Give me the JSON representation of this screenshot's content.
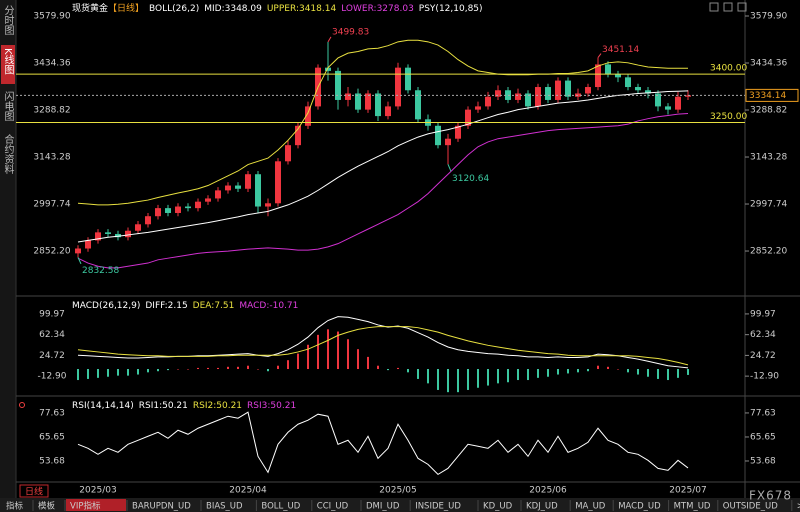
{
  "ui": {
    "sidebar": [
      "分时图",
      "K线图",
      "闪电图",
      "合约资料"
    ],
    "period_label": "日线",
    "brand": "FX678",
    "bottom_tabs": [
      "指标",
      "模板",
      "VIP指标",
      "BARUPDN_UD",
      "BIAS_UD",
      "BOLL_UD",
      "CCI_UD",
      "DMI_UD",
      "INSIDE_UD",
      "KD_UD",
      "KDJ_UD",
      "MA_UD",
      "MACD_UD",
      "MTM_UD",
      "OUTSIDE_UD",
      ">>"
    ]
  },
  "chart_data": [
    {
      "type": "candlestick",
      "title": "现货黄金",
      "period": "【日线】",
      "indicators": [
        {
          "text": "BOLL(26,2)",
          "color": "#ffffff"
        },
        {
          "text": "MID:3348.09",
          "color": "#ffffff"
        },
        {
          "text": "UPPER:3418.14",
          "color": "#e8e040"
        },
        {
          "text": "LOWER:3278.03",
          "color": "#e040e0"
        },
        {
          "text": "PSY(12,10,85)",
          "color": "#ffffff"
        }
      ],
      "categories": [
        null,
        null,
        "2025/03",
        null,
        null,
        null,
        null,
        null,
        null,
        null,
        null,
        null,
        null,
        null,
        null,
        null,
        null,
        "2025/04",
        null,
        null,
        null,
        null,
        null,
        null,
        null,
        null,
        null,
        null,
        null,
        null,
        null,
        null,
        "2025/05",
        null,
        null,
        null,
        null,
        null,
        null,
        null,
        null,
        null,
        null,
        null,
        null,
        null,
        null,
        "2025/06",
        null,
        null,
        null,
        null,
        null,
        null,
        null,
        null,
        null,
        null,
        null,
        null,
        null,
        "2025/07"
      ],
      "open": [
        2845,
        2860,
        2885,
        2910,
        2905,
        2895,
        2915,
        2935,
        2960,
        2985,
        2970,
        2990,
        2985,
        3005,
        3015,
        3040,
        3055,
        3045,
        3090,
        2990,
        3000,
        3130,
        3180,
        3240,
        3300,
        3420,
        3410,
        3320,
        3340,
        3290,
        3340,
        3270,
        3300,
        3420,
        3350,
        3260,
        3240,
        3180,
        3200,
        3240,
        3290,
        3300,
        3330,
        3350,
        3320,
        3340,
        3300,
        3360,
        3320,
        3380,
        3330,
        3340,
        3360,
        3430,
        3400,
        3390,
        3360,
        3350,
        3340,
        3300,
        3290,
        3330
      ],
      "high": [
        2870,
        2895,
        2920,
        2920,
        2915,
        2925,
        2945,
        2970,
        2995,
        2995,
        3000,
        3000,
        3015,
        3025,
        3050,
        3065,
        3065,
        3100,
        3100,
        3015,
        3140,
        3195,
        3250,
        3315,
        3430,
        3499.83,
        3420,
        3360,
        3355,
        3350,
        3350,
        3315,
        3435,
        3430,
        3360,
        3275,
        3250,
        3215,
        3250,
        3300,
        3315,
        3345,
        3365,
        3360,
        3355,
        3350,
        3370,
        3370,
        3390,
        3390,
        3355,
        3370,
        3451.14,
        3440,
        3410,
        3400,
        3370,
        3360,
        3350,
        3310,
        3345,
        3350
      ],
      "low": [
        2832.58,
        2850,
        2875,
        2895,
        2885,
        2885,
        2905,
        2925,
        2950,
        2960,
        2960,
        2975,
        2975,
        2995,
        3005,
        3030,
        3035,
        3035,
        2970,
        2960,
        2990,
        3120,
        3170,
        3230,
        3290,
        3380,
        3290,
        3300,
        3280,
        3280,
        3255,
        3260,
        3290,
        3340,
        3250,
        3225,
        3170,
        3120.64,
        3190,
        3230,
        3280,
        3290,
        3320,
        3310,
        3310,
        3290,
        3290,
        3310,
        3310,
        3320,
        3320,
        3330,
        3350,
        3390,
        3375,
        3350,
        3340,
        3325,
        3285,
        3275,
        3280,
        3320
      ],
      "close": [
        2860,
        2885,
        2910,
        2905,
        2895,
        2915,
        2935,
        2960,
        2985,
        2970,
        2990,
        2985,
        3005,
        3015,
        3040,
        3055,
        3045,
        3090,
        2990,
        3000,
        3130,
        3180,
        3240,
        3300,
        3420,
        3410,
        3320,
        3340,
        3290,
        3340,
        3270,
        3300,
        3420,
        3350,
        3260,
        3240,
        3180,
        3200,
        3240,
        3290,
        3300,
        3330,
        3350,
        3320,
        3340,
        3300,
        3360,
        3320,
        3380,
        3330,
        3340,
        3360,
        3430,
        3400,
        3390,
        3360,
        3350,
        3340,
        3300,
        3290,
        3330,
        3334.14
      ],
      "up_color": "#f0353f",
      "down_color": "#3cc8a0",
      "series": [
        {
          "color": "#e8e040",
          "values": [
            3000,
            2998,
            2995,
            2995,
            2997,
            3000,
            3005,
            3010,
            3018,
            3025,
            3032,
            3038,
            3045,
            3055,
            3070,
            3085,
            3100,
            3120,
            3130,
            3140,
            3165,
            3195,
            3230,
            3280,
            3360,
            3420,
            3450,
            3465,
            3470,
            3478,
            3480,
            3488,
            3500,
            3505,
            3505,
            3500,
            3490,
            3470,
            3445,
            3425,
            3410,
            3405,
            3400,
            3398,
            3398,
            3398,
            3400,
            3400,
            3402,
            3402,
            3405,
            3410,
            3425,
            3435,
            3438,
            3435,
            3428,
            3422,
            3420,
            3418,
            3418,
            3418.14
          ]
        },
        {
          "color": "#ffffff",
          "values": [
            2880,
            2885,
            2890,
            2895,
            2898,
            2902,
            2906,
            2910,
            2915,
            2920,
            2925,
            2930,
            2935,
            2940,
            2946,
            2952,
            2958,
            2965,
            2970,
            2975,
            2985,
            2995,
            3008,
            3022,
            3040,
            3060,
            3080,
            3098,
            3115,
            3130,
            3145,
            3160,
            3178,
            3192,
            3205,
            3215,
            3222,
            3228,
            3236,
            3245,
            3255,
            3265,
            3275,
            3282,
            3290,
            3295,
            3300,
            3305,
            3310,
            3313,
            3316,
            3320,
            3325,
            3330,
            3334,
            3337,
            3340,
            3342,
            3344,
            3346,
            3347,
            3348.09
          ]
        },
        {
          "color": "#d030d0",
          "values": [
            2830,
            2815,
            2805,
            2800,
            2800,
            2805,
            2810,
            2815,
            2825,
            2830,
            2835,
            2840,
            2845,
            2848,
            2850,
            2852,
            2855,
            2858,
            2860,
            2862,
            2860,
            2858,
            2855,
            2855,
            2858,
            2865,
            2875,
            2890,
            2905,
            2920,
            2935,
            2950,
            2965,
            2985,
            3005,
            3030,
            3060,
            3090,
            3120,
            3150,
            3175,
            3190,
            3200,
            3205,
            3210,
            3215,
            3220,
            3225,
            3228,
            3230,
            3232,
            3234,
            3236,
            3238,
            3240,
            3245,
            3255,
            3262,
            3268,
            3272,
            3276,
            3278.03
          ]
        }
      ],
      "hlines": [
        {
          "value": 3400,
          "label": "3400.00"
        },
        {
          "value": 3250,
          "label": "3250.00"
        }
      ],
      "hline_color": "#e8e040",
      "last": 3334.14,
      "ylim": [
        2747,
        3614
      ],
      "yticks": [
        {
          "value": 3579.9,
          "label": "3579.90"
        },
        3434.36,
        3288.82,
        3143.28,
        2997.74,
        {
          "value": 2852.2,
          "label": "2852.20"
        }
      ]
    },
    {
      "type": "macd",
      "title": "MACD(26,12,9)",
      "legend": [
        {
          "text": "DIFF:2.15",
          "color": "#ffffff"
        },
        {
          "text": "DEA:7.51",
          "color": "#e8e040"
        },
        {
          "text": "MACD:-10.71",
          "color": "#e040e0"
        }
      ],
      "series": [
        {
          "color": "#ffffff",
          "values": [
            25,
            24,
            23,
            22,
            21,
            20,
            20,
            21,
            22,
            22,
            23,
            23,
            24,
            24,
            25,
            26,
            27,
            28,
            25,
            23,
            28,
            35,
            45,
            58,
            75,
            88,
            95,
            94,
            90,
            86,
            80,
            76,
            78,
            74,
            66,
            58,
            48,
            40,
            35,
            32,
            30,
            28,
            27,
            25,
            24,
            22,
            22,
            21,
            22,
            21,
            21,
            22,
            27,
            26,
            24,
            21,
            18,
            14,
            10,
            6,
            4,
            2.15
          ]
        },
        {
          "color": "#e8e040",
          "values": [
            35,
            33,
            31,
            29,
            27,
            26,
            25,
            24,
            24,
            23,
            23,
            23,
            23,
            23,
            24,
            24,
            25,
            25,
            25,
            25,
            25,
            27,
            31,
            36,
            44,
            52,
            61,
            67,
            72,
            75,
            77,
            77,
            77,
            77,
            75,
            71,
            67,
            61,
            56,
            51,
            47,
            43,
            40,
            37,
            34,
            32,
            30,
            28,
            27,
            25,
            24,
            24,
            24,
            24,
            24,
            24,
            23,
            21,
            19,
            16,
            12,
            7.51
          ]
        }
      ],
      "histogram": [
        -20,
        -18,
        -16,
        -14,
        -12,
        -12,
        -10,
        -6,
        -4,
        -2,
        0,
        0,
        2,
        2,
        2,
        4,
        4,
        6,
        0,
        -4,
        6,
        16,
        28,
        44,
        62,
        72,
        68,
        54,
        36,
        22,
        6,
        -2,
        2,
        -6,
        -18,
        -26,
        -38,
        -42,
        -42,
        -38,
        -34,
        -30,
        -26,
        -24,
        -20,
        -20,
        -16,
        -14,
        -10,
        -8,
        -6,
        -4,
        6,
        4,
        0,
        -6,
        -10,
        -14,
        -18,
        -20,
        -16,
        -10.71
      ],
      "up_color": "#f0353f",
      "down_color": "#3cc8a0",
      "ylim": [
        -29,
        107.1
      ],
      "yticks": [
        99.97,
        62.34,
        24.72,
        {
          "value": -12.9,
          "label": "-12.90"
        }
      ]
    },
    {
      "type": "line",
      "title": "RSI(14,14,14)",
      "legend": [
        {
          "text": "RSI1:50.21",
          "color": "#ffffff"
        },
        {
          "text": "RSI2:50.21",
          "color": "#e8e040"
        },
        {
          "text": "RSI3:50.21",
          "color": "#e040e0"
        }
      ],
      "series": [
        {
          "color": "#ffffff",
          "values": [
            62,
            60,
            57,
            60,
            58,
            62,
            64,
            66,
            68,
            65,
            69,
            67,
            70,
            72,
            74,
            76,
            75,
            78,
            56,
            48,
            62,
            68,
            72,
            74,
            77,
            76,
            62,
            64,
            58,
            66,
            55,
            60,
            72,
            64,
            55,
            52,
            47,
            50,
            56,
            62,
            61,
            60,
            64,
            58,
            62,
            56,
            64,
            58,
            66,
            58,
            60,
            63,
            70,
            64,
            62,
            58,
            57,
            54,
            50,
            49,
            54,
            50.21
          ]
        }
      ],
      "ylim": [
        43.2,
        79.1
      ],
      "yticks": [
        77.63,
        65.65,
        53.68
      ]
    }
  ]
}
